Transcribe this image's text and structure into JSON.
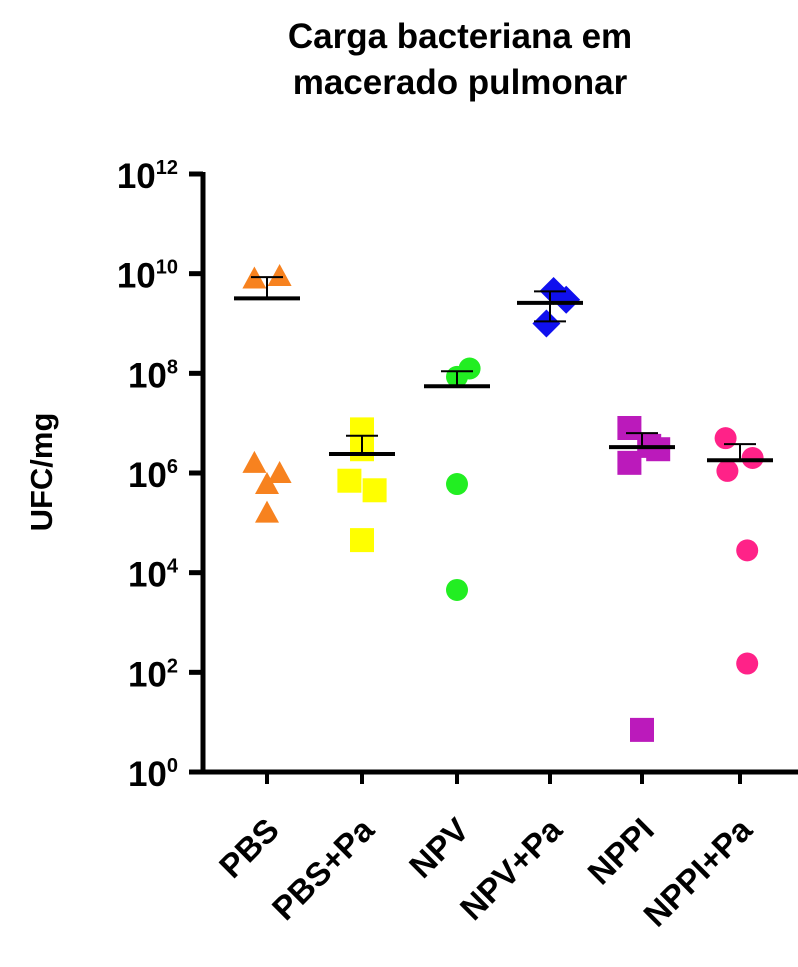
{
  "chart_data": {
    "type": "scatter",
    "title": "Carga bacteriana em\nmacerado pulmonar",
    "title_lines": [
      "Carga bacteriana em",
      "macerado pulmonar"
    ],
    "ylabel": "UFC/mg",
    "xlabel": "",
    "yscale": "log10",
    "ylim": [
      1,
      1000000000000.0
    ],
    "yticks": [
      {
        "base": "10",
        "exp": "0",
        "value": 1
      },
      {
        "base": "10",
        "exp": "2",
        "value": 100
      },
      {
        "base": "10",
        "exp": "4",
        "value": 10000
      },
      {
        "base": "10",
        "exp": "6",
        "value": 1000000
      },
      {
        "base": "10",
        "exp": "8",
        "value": 100000000
      },
      {
        "base": "10",
        "exp": "10",
        "value": 10000000000
      },
      {
        "base": "10",
        "exp": "12",
        "value": 1000000000000
      }
    ],
    "categories": [
      "PBS",
      "PBS+Pa",
      "NPV",
      "NPV+Pa",
      "NPPI",
      "NPPI+Pa"
    ],
    "series": [
      {
        "category": "PBS",
        "marker": "triangle",
        "color": "#f7821f",
        "points": [
          {
            "x": -0.35,
            "y": 8000000000.0
          },
          {
            "x": 0.35,
            "y": 9000000000.0
          },
          {
            "x": -0.35,
            "y": 1600000.0
          },
          {
            "x": 0.35,
            "y": 1000000.0
          },
          {
            "x": 0,
            "y": 600000.0
          },
          {
            "x": 0,
            "y": 160000.0
          }
        ],
        "mean": 3200000000.0,
        "sem_top": 8500000000.0
      },
      {
        "category": "PBS+Pa",
        "marker": "square",
        "color": "#ffff00",
        "points": [
          {
            "x": 0,
            "y": 7500000.0
          },
          {
            "x": 0,
            "y": 3000000.0
          },
          {
            "x": -0.35,
            "y": 700000.0
          },
          {
            "x": 0.35,
            "y": 450000.0
          },
          {
            "x": 0,
            "y": 45000.0
          }
        ],
        "mean": 2400000.0,
        "sem_top": 5600000.0
      },
      {
        "category": "NPV",
        "marker": "circle",
        "color": "#22ee22",
        "points": [
          {
            "x": 0.35,
            "y": 125000000.0
          },
          {
            "x": 0,
            "y": 85000000.0
          },
          {
            "x": 0,
            "y": 600000.0
          },
          {
            "x": 0,
            "y": 4500.0
          }
        ],
        "mean": 55000000.0,
        "sem_top": 110000000.0
      },
      {
        "category": "NPV+Pa",
        "marker": "diamond",
        "color": "#1010ee",
        "points": [
          {
            "x": 0.1,
            "y": 4500000000.0
          },
          {
            "x": 0.45,
            "y": 3000000000.0
          },
          {
            "x": -0.1,
            "y": 1000000000.0
          }
        ],
        "mean": 2600000000.0,
        "sem_top": 4400000000.0,
        "sem_bottom": 1100000000.0
      },
      {
        "category": "NPPI",
        "marker": "square",
        "color": "#bb1abb",
        "points": [
          {
            "x": -0.35,
            "y": 8000000.0
          },
          {
            "x": 0.2,
            "y": 3500000.0
          },
          {
            "x": 0.45,
            "y": 3000000.0
          },
          {
            "x": -0.35,
            "y": 1600000.0
          },
          {
            "x": 0,
            "y": 7
          }
        ],
        "mean": 3300000.0,
        "sem_top": 6300000.0
      },
      {
        "category": "NPPI+Pa",
        "marker": "circle",
        "color": "#ff2288",
        "points": [
          {
            "x": -0.4,
            "y": 5000000.0
          },
          {
            "x": 0.35,
            "y": 2000000.0
          },
          {
            "x": -0.35,
            "y": 1100000.0
          },
          {
            "x": 0.2,
            "y": 28000.0
          },
          {
            "x": 0.2,
            "y": 150
          }
        ],
        "mean": 1800000.0,
        "sem_top": 3800000.0
      }
    ]
  }
}
